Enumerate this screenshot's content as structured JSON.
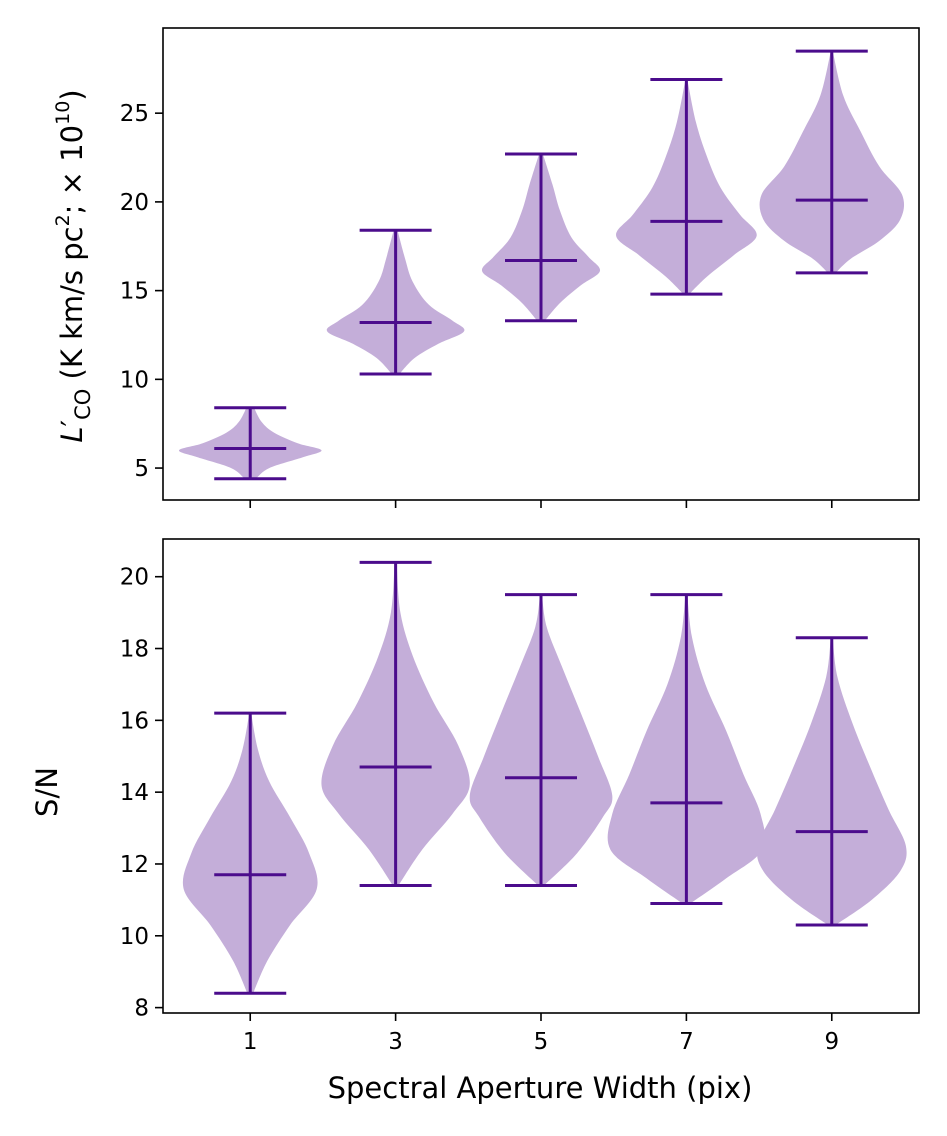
{
  "colors": {
    "body": "#c4aed9",
    "line": "#4b0c8c",
    "axis": "#000000"
  },
  "chart_data": [
    {
      "type": "violin",
      "title": "",
      "ylabel": "L'CO (K km/s pc²;  × 10¹⁰)",
      "ylabel_parts": {
        "main": "L",
        "prime": "′",
        "sub": "CO",
        "units": " (K km/s pc",
        "sup1": "2",
        "mid": ";  × 10",
        "sup2": "10",
        "close": ")"
      },
      "xlabel": "",
      "categories": [
        "1",
        "3",
        "5",
        "7",
        "9"
      ],
      "x": [
        1,
        3,
        5,
        7,
        9
      ],
      "xlim": [
        -0.2,
        10.2
      ],
      "ylim": [
        3.2,
        29.8
      ],
      "yticks": [
        5,
        10,
        15,
        20,
        25
      ],
      "show_xticklabels": false,
      "series": [
        {
          "x": 1,
          "min": 4.4,
          "median": 6.1,
          "max": 8.4,
          "profile": [
            [
              4.4,
              0.06
            ],
            [
              5.0,
              0.2
            ],
            [
              5.6,
              0.55
            ],
            [
              6.0,
              0.75
            ],
            [
              6.4,
              0.5
            ],
            [
              7.0,
              0.25
            ],
            [
              7.6,
              0.12
            ],
            [
              8.4,
              0.04
            ]
          ]
        },
        {
          "x": 3,
          "min": 10.3,
          "median": 13.2,
          "max": 18.4,
          "profile": [
            [
              10.3,
              0.04
            ],
            [
              11.2,
              0.2
            ],
            [
              12.0,
              0.45
            ],
            [
              12.7,
              0.72
            ],
            [
              13.3,
              0.6
            ],
            [
              14.2,
              0.35
            ],
            [
              15.5,
              0.18
            ],
            [
              16.8,
              0.1
            ],
            [
              18.4,
              0.02
            ]
          ]
        },
        {
          "x": 5,
          "min": 13.3,
          "median": 16.7,
          "max": 22.7,
          "profile": [
            [
              13.3,
              0.04
            ],
            [
              14.3,
              0.2
            ],
            [
              15.3,
              0.42
            ],
            [
              16.1,
              0.62
            ],
            [
              16.9,
              0.5
            ],
            [
              18.0,
              0.32
            ],
            [
              19.5,
              0.2
            ],
            [
              21.0,
              0.12
            ],
            [
              22.7,
              0.02
            ]
          ]
        },
        {
          "x": 7,
          "min": 14.8,
          "median": 18.9,
          "max": 26.9,
          "profile": [
            [
              14.8,
              0.03
            ],
            [
              15.8,
              0.22
            ],
            [
              17.0,
              0.5
            ],
            [
              18.1,
              0.74
            ],
            [
              19.3,
              0.56
            ],
            [
              20.8,
              0.36
            ],
            [
              22.5,
              0.22
            ],
            [
              24.5,
              0.1
            ],
            [
              26.9,
              0.01
            ]
          ]
        },
        {
          "x": 9,
          "min": 16.0,
          "median": 20.1,
          "max": 28.5,
          "profile": [
            [
              16.0,
              0.04
            ],
            [
              16.8,
              0.2
            ],
            [
              17.8,
              0.5
            ],
            [
              19.0,
              0.72
            ],
            [
              20.4,
              0.74
            ],
            [
              22.0,
              0.5
            ],
            [
              24.0,
              0.3
            ],
            [
              26.0,
              0.12
            ],
            [
              28.5,
              0.01
            ]
          ]
        }
      ]
    },
    {
      "type": "violin",
      "title": "",
      "ylabel": "S/N",
      "xlabel": "Spectral Aperture Width (pix)",
      "categories": [
        "1",
        "3",
        "5",
        "7",
        "9"
      ],
      "x": [
        1,
        3,
        5,
        7,
        9
      ],
      "xlim": [
        -0.2,
        10.2
      ],
      "ylim": [
        7.85,
        21.05
      ],
      "yticks": [
        8,
        10,
        12,
        14,
        16,
        18,
        20
      ],
      "show_xticklabels": true,
      "series": [
        {
          "x": 1,
          "min": 8.4,
          "median": 11.7,
          "max": 16.2,
          "profile": [
            [
              8.4,
              0.03
            ],
            [
              9.3,
              0.18
            ],
            [
              10.3,
              0.42
            ],
            [
              11.3,
              0.7
            ],
            [
              12.3,
              0.62
            ],
            [
              13.3,
              0.42
            ],
            [
              14.3,
              0.2
            ],
            [
              15.2,
              0.08
            ],
            [
              16.2,
              0.01
            ]
          ]
        },
        {
          "x": 3,
          "min": 11.4,
          "median": 14.7,
          "max": 20.4,
          "profile": [
            [
              11.4,
              0.03
            ],
            [
              12.4,
              0.28
            ],
            [
              13.4,
              0.6
            ],
            [
              14.2,
              0.78
            ],
            [
              15.3,
              0.66
            ],
            [
              16.5,
              0.4
            ],
            [
              17.8,
              0.18
            ],
            [
              19.0,
              0.05
            ],
            [
              20.4,
              0.01
            ]
          ]
        },
        {
          "x": 5,
          "min": 11.4,
          "median": 14.4,
          "max": 19.5,
          "profile": [
            [
              11.4,
              0.03
            ],
            [
              12.3,
              0.38
            ],
            [
              13.3,
              0.65
            ],
            [
              13.9,
              0.75
            ],
            [
              15.0,
              0.6
            ],
            [
              16.2,
              0.42
            ],
            [
              17.5,
              0.22
            ],
            [
              18.6,
              0.06
            ],
            [
              19.5,
              0.01
            ]
          ]
        },
        {
          "x": 7,
          "min": 10.9,
          "median": 13.7,
          "max": 19.5,
          "profile": [
            [
              10.9,
              0.04
            ],
            [
              11.6,
              0.42
            ],
            [
              12.4,
              0.8
            ],
            [
              13.4,
              0.78
            ],
            [
              14.5,
              0.6
            ],
            [
              15.7,
              0.42
            ],
            [
              17.0,
              0.2
            ],
            [
              18.3,
              0.06
            ],
            [
              19.5,
              0.01
            ]
          ]
        },
        {
          "x": 9,
          "min": 10.3,
          "median": 12.9,
          "max": 18.3,
          "profile": [
            [
              10.3,
              0.04
            ],
            [
              11.0,
              0.42
            ],
            [
              11.8,
              0.72
            ],
            [
              12.5,
              0.78
            ],
            [
              13.5,
              0.6
            ],
            [
              14.6,
              0.42
            ],
            [
              15.9,
              0.22
            ],
            [
              17.2,
              0.06
            ],
            [
              18.3,
              0.01
            ]
          ]
        }
      ]
    }
  ]
}
